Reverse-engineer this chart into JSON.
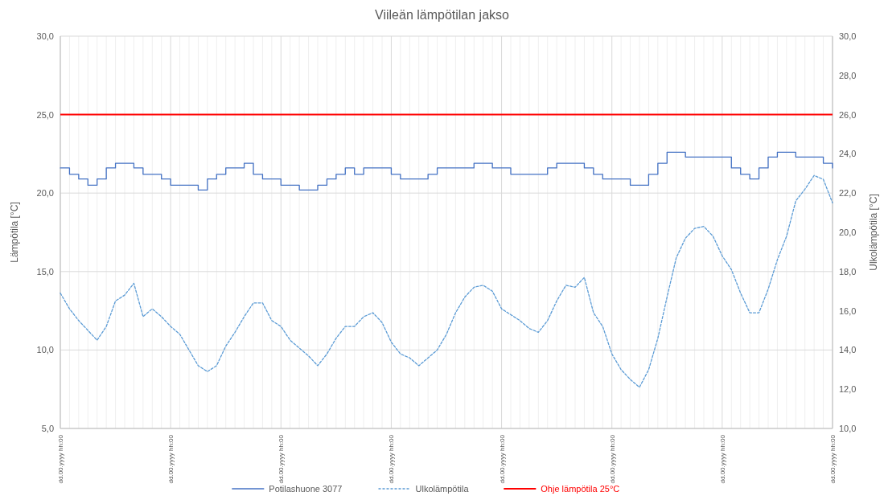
{
  "chart_data": {
    "type": "line",
    "title": "Viileän lämpötilan jakso",
    "ylabel": "Lämpötila [°C]",
    "y2label": "Ulkolämpötila [°C]",
    "categories": [
      "dd.00.yyyy hh:00",
      null,
      null,
      null,
      null,
      null,
      null,
      null,
      null,
      null,
      null,
      null,
      "dd.00.yyyy hh:00",
      null,
      null,
      null,
      null,
      null,
      null,
      null,
      null,
      null,
      null,
      null,
      "dd.00.yyyy hh:00",
      null,
      null,
      null,
      null,
      null,
      null,
      null,
      null,
      null,
      null,
      null,
      "dd.00.yyyy hh:00",
      null,
      null,
      null,
      null,
      null,
      null,
      null,
      null,
      null,
      null,
      null,
      "dd.00.yyyy hh:00",
      null,
      null,
      null,
      null,
      null,
      null,
      null,
      null,
      null,
      null,
      null,
      "dd.00.yyyy hh:00",
      null,
      null,
      null,
      null,
      null,
      null,
      null,
      null,
      null,
      null,
      null,
      "dd.00.yyyy hh:00",
      null,
      null,
      null,
      null,
      null,
      null,
      null,
      null,
      null,
      null,
      null,
      "dd.00.yyyy hh:00"
    ],
    "series": [
      {
        "name": "Potilashuone 3077",
        "type": "step",
        "color": "#4472c4",
        "line_style": "solid",
        "values": [
          21.6,
          21.2,
          20.9,
          20.5,
          20.9,
          21.6,
          21.9,
          21.9,
          21.6,
          21.2,
          21.2,
          20.9,
          20.5,
          20.5,
          20.5,
          20.2,
          20.9,
          21.2,
          21.6,
          21.6,
          21.9,
          21.2,
          20.9,
          20.9,
          20.5,
          20.5,
          20.2,
          20.2,
          20.5,
          20.9,
          21.2,
          21.6,
          21.2,
          21.6,
          21.6,
          21.6,
          21.2,
          20.9,
          20.9,
          20.9,
          21.2,
          21.6,
          21.6,
          21.6,
          21.6,
          21.9,
          21.9,
          21.6,
          21.6,
          21.2,
          21.2,
          21.2,
          21.2,
          21.6,
          21.9,
          21.9,
          21.9,
          21.6,
          21.2,
          20.9,
          20.9,
          20.9,
          20.5,
          20.5,
          21.2,
          21.9,
          22.6,
          22.6,
          22.3,
          22.3,
          22.3,
          22.3,
          22.3,
          21.6,
          21.2,
          20.9,
          21.6,
          22.3,
          22.6,
          22.6,
          22.3,
          22.3,
          22.3,
          21.9,
          21.6
        ]
      },
      {
        "name": "Ulkolämpötila",
        "type": "line",
        "axis": "y2",
        "color": "#5b9bd5",
        "line_style": "dashed",
        "values": [
          16.9,
          16.1,
          15.5,
          15.0,
          14.5,
          15.2,
          16.5,
          16.8,
          17.4,
          15.7,
          16.1,
          15.7,
          15.2,
          14.8,
          14.0,
          13.2,
          12.9,
          13.2,
          14.2,
          14.9,
          15.7,
          16.4,
          16.4,
          15.5,
          15.2,
          14.5,
          14.1,
          13.7,
          13.2,
          13.8,
          14.6,
          15.2,
          15.2,
          15.7,
          15.9,
          15.4,
          14.4,
          13.8,
          13.6,
          13.2,
          13.6,
          14.0,
          14.8,
          15.9,
          16.7,
          17.2,
          17.3,
          17.0,
          16.1,
          15.8,
          15.5,
          15.1,
          14.9,
          15.5,
          16.5,
          17.3,
          17.2,
          17.7,
          15.9,
          15.2,
          13.8,
          13.0,
          12.5,
          12.1,
          13.0,
          14.6,
          16.7,
          18.7,
          19.7,
          20.2,
          20.3,
          19.8,
          18.8,
          18.1,
          16.9,
          15.9,
          15.9,
          17.1,
          18.6,
          19.8,
          21.6,
          22.2,
          22.9,
          22.7,
          21.5
        ]
      }
    ],
    "ylim": [
      5,
      30
    ],
    "yticks": [
      {
        "value": 5,
        "label": "5,0"
      },
      {
        "value": 10,
        "label": "10,0"
      },
      {
        "value": 15,
        "label": "15,0"
      },
      {
        "value": 20,
        "label": "20,0"
      },
      {
        "value": 25,
        "label": "25,0"
      },
      {
        "value": 30,
        "label": "30,0"
      }
    ],
    "y2lim": [
      10,
      30
    ],
    "y2ticks": [
      {
        "value": 10,
        "label": "10,0"
      },
      {
        "value": 12,
        "label": "12,0"
      },
      {
        "value": 14,
        "label": "14,0"
      },
      {
        "value": 16,
        "label": "16,0"
      },
      {
        "value": 18,
        "label": "18,0"
      },
      {
        "value": 20,
        "label": "20,0"
      },
      {
        "value": 22,
        "label": "22,0"
      },
      {
        "value": 24,
        "label": "24,0"
      },
      {
        "value": 26,
        "label": "26,0"
      },
      {
        "value": 28,
        "label": "28,0"
      },
      {
        "value": 30,
        "label": "30,0"
      }
    ],
    "ref_lines": [
      {
        "axis": "y",
        "value": 25,
        "label": "Ohje lämpötila 25°C",
        "color": "#ff0000",
        "line_style": "solid"
      }
    ],
    "grid": true,
    "legend": "bottom"
  }
}
